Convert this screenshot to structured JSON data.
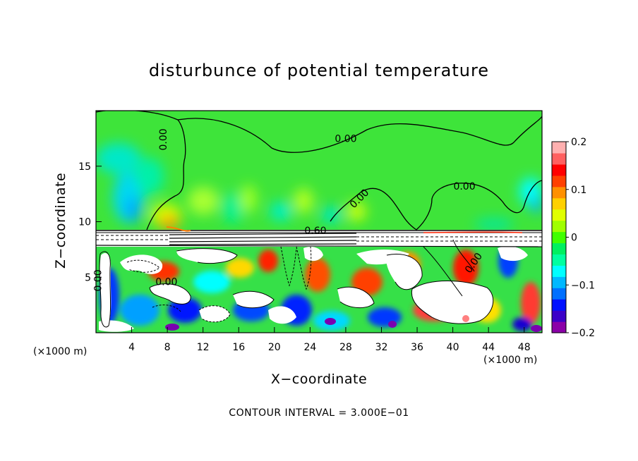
{
  "chart_data": {
    "type": "heatmap",
    "title": "disturbunce of potential temperature",
    "xlabel": "X−coordinate",
    "ylabel": "Z−coordinate",
    "x_unit_left": "(×1000 m)",
    "x_unit_right": "(×1000 m)",
    "xlim": [
      0,
      50
    ],
    "ylim": [
      0,
      20
    ],
    "x_ticks": [
      4,
      8,
      12,
      16,
      20,
      24,
      28,
      32,
      36,
      40,
      44,
      48
    ],
    "x_tick_labels": [
      "4",
      "8",
      "12",
      "16",
      "20",
      "24",
      "28",
      "32",
      "36",
      "40",
      "44",
      "48"
    ],
    "y_ticks": [
      5,
      10,
      15
    ],
    "y_tick_labels": [
      "5",
      "10",
      "15"
    ],
    "colorbar": {
      "range": [
        -0.2,
        0.2
      ],
      "ticks": [
        0.2,
        0.1,
        0,
        -0.1,
        -0.2
      ],
      "tick_labels": [
        "0.2",
        "0.1",
        "0",
        "−0.1",
        "−0.2"
      ],
      "colors": [
        "#8b00a8",
        "#3c00c8",
        "#0010ff",
        "#0070ff",
        "#00b8ff",
        "#00ffff",
        "#00ffa0",
        "#00f060",
        "#40ff00",
        "#a0ff00",
        "#e0ff00",
        "#ffd000",
        "#ff9000",
        "#ff4000",
        "#ff0000",
        "#ff6060",
        "#ffb0b0"
      ]
    },
    "contour_labels": [
      {
        "text": "0.00",
        "x": 7.5,
        "z": 17.4,
        "angle": -90
      },
      {
        "text": "0.00",
        "x": 28.0,
        "z": 17.5,
        "angle": 0
      },
      {
        "text": "0.00",
        "x": 29.5,
        "z": 12.1,
        "angle": -45
      },
      {
        "text": "0.00",
        "x": 41.3,
        "z": 13.2,
        "angle": 0
      },
      {
        "text": "0.60",
        "x": 24.6,
        "z": 9.2,
        "angle": 0
      },
      {
        "text": "0.00",
        "x": 0.2,
        "z": 4.7,
        "angle": -90
      },
      {
        "text": "0.00",
        "x": 7.9,
        "z": 4.6,
        "angle": 0
      },
      {
        "text": "0.00",
        "x": 42.3,
        "z": 6.3,
        "angle": -55
      }
    ],
    "contour_interval_note": "CONTOUR INTERVAL = 3.000E−01",
    "grid": false
  }
}
